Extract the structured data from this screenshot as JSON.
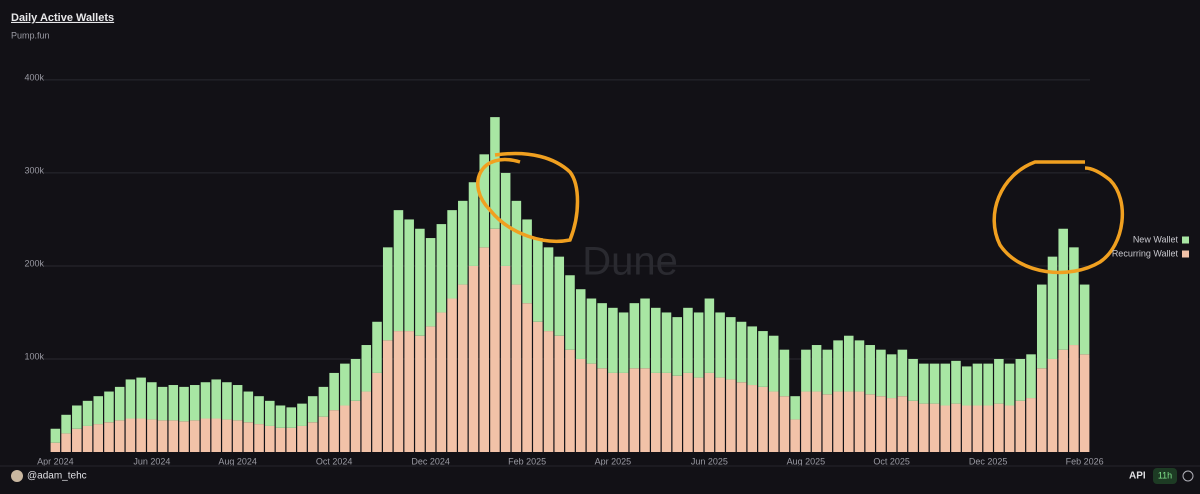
{
  "chart_data": {
    "type": "stacked_bar",
    "title": "Daily Active Wallets",
    "subtitle": "Pump.fun",
    "watermark": "Dune",
    "categories": [
      "Apr 2024",
      null,
      null,
      null,
      null,
      null,
      null,
      null,
      null,
      "Jun 2024",
      null,
      null,
      null,
      null,
      null,
      null,
      null,
      "Aug 2024",
      null,
      null,
      null,
      null,
      null,
      null,
      null,
      null,
      "Oct 2024",
      null,
      null,
      null,
      null,
      null,
      null,
      null,
      null,
      "Dec 2024",
      null,
      null,
      null,
      null,
      null,
      null,
      null,
      null,
      "Feb 2025",
      null,
      null,
      null,
      null,
      null,
      null,
      null,
      "Apr 2025",
      null,
      null,
      null,
      null,
      null,
      null,
      null,
      null,
      "Jun 2025",
      null,
      null,
      null,
      null,
      null,
      null,
      null,
      null,
      "Aug 2025",
      null,
      null,
      null,
      null,
      null,
      null,
      null,
      "Oct 2025",
      null,
      null,
      null,
      null,
      null,
      null,
      null,
      null,
      "Dec 2025",
      null,
      null,
      null,
      null,
      null,
      null,
      null,
      null,
      "Feb 2026"
    ],
    "series": [
      {
        "name": "New Wallet",
        "color": "#a8e6a3",
        "values": [
          15000,
          20000,
          25000,
          27000,
          30000,
          33000,
          36000,
          42000,
          44000,
          40000,
          36000,
          38000,
          37000,
          38000,
          39000,
          42000,
          40000,
          38000,
          33000,
          30000,
          27000,
          24000,
          22000,
          24000,
          28000,
          32000,
          40000,
          45000,
          45000,
          50000,
          55000,
          100000,
          130000,
          120000,
          115000,
          95000,
          95000,
          95000,
          90000,
          90000,
          100000,
          120000,
          100000,
          90000,
          90000,
          90000,
          90000,
          85000,
          80000,
          75000,
          70000,
          70000,
          70000,
          65000,
          70000,
          75000,
          70000,
          65000,
          63000,
          70000,
          70000,
          80000,
          70000,
          67000,
          65000,
          63000,
          60000,
          60000,
          50000,
          25000,
          45000,
          50000,
          48000,
          55000,
          60000,
          55000,
          53000,
          50000,
          47000,
          50000,
          45000,
          43000,
          43000,
          45000,
          46000,
          42000,
          45000,
          45000,
          48000,
          45000,
          45000,
          47000,
          90000,
          110000,
          130000,
          105000,
          75000
        ]
      },
      {
        "name": "Recurring Wallet",
        "color": "#f2c2a8",
        "values": [
          10000,
          20000,
          25000,
          28000,
          30000,
          32000,
          34000,
          36000,
          36000,
          35000,
          34000,
          34000,
          33000,
          34000,
          36000,
          36000,
          35000,
          34000,
          32000,
          30000,
          28000,
          26000,
          26000,
          28000,
          32000,
          38000,
          45000,
          50000,
          55000,
          65000,
          85000,
          120000,
          130000,
          130000,
          125000,
          135000,
          150000,
          165000,
          180000,
          200000,
          220000,
          240000,
          200000,
          180000,
          160000,
          140000,
          130000,
          125000,
          110000,
          100000,
          95000,
          90000,
          85000,
          85000,
          90000,
          90000,
          85000,
          85000,
          82000,
          85000,
          80000,
          85000,
          80000,
          78000,
          75000,
          72000,
          70000,
          65000,
          60000,
          35000,
          65000,
          65000,
          62000,
          65000,
          65000,
          65000,
          62000,
          60000,
          58000,
          60000,
          55000,
          52000,
          52000,
          50000,
          52000,
          50000,
          50000,
          50000,
          52000,
          50000,
          55000,
          58000,
          90000,
          100000,
          110000,
          115000,
          105000
        ]
      }
    ],
    "ylim": [
      0,
      430000
    ],
    "yticks": [
      {
        "value": 100000,
        "label": "100k"
      },
      {
        "value": 200000,
        "label": "200k"
      },
      {
        "value": 300000,
        "label": "300k"
      },
      {
        "value": 400000,
        "label": "400k"
      }
    ],
    "grid": true,
    "legend": "right"
  },
  "footer": {
    "user": "@adam_tehc",
    "api": "API",
    "age": "11h"
  }
}
